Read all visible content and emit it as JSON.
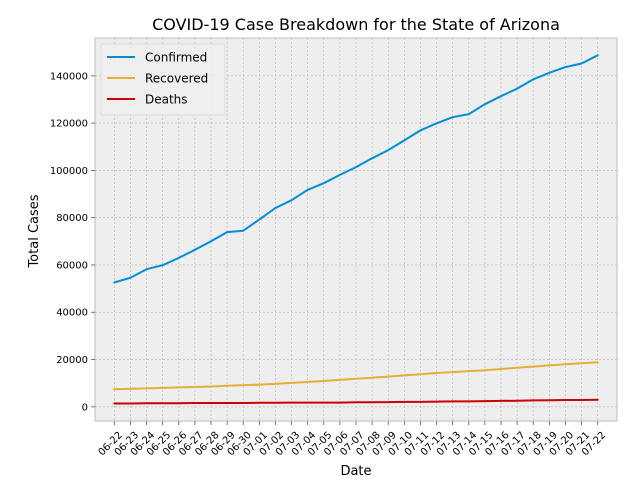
{
  "chart_data": {
    "type": "line",
    "title": "COVID-19 Case Breakdown for the State of Arizona",
    "xlabel": "Date",
    "ylabel": "Total Cases",
    "ylim": [
      -6000,
      156000
    ],
    "yticks": [
      0,
      20000,
      40000,
      60000,
      80000,
      100000,
      120000,
      140000
    ],
    "grid": true,
    "legend_position": "top-left",
    "categories": [
      "06-22",
      "06-23",
      "06-24",
      "06-25",
      "06-26",
      "06-27",
      "06-28",
      "06-29",
      "06-30",
      "07-01",
      "07-02",
      "07-03",
      "07-04",
      "07-05",
      "07-06",
      "07-07",
      "07-08",
      "07-09",
      "07-10",
      "07-11",
      "07-12",
      "07-13",
      "07-14",
      "07-15",
      "07-16",
      "07-17",
      "07-18",
      "07-19",
      "07-20",
      "07-21",
      "07-22"
    ],
    "series": [
      {
        "name": "Confirmed",
        "color": "#008fd5",
        "values": [
          52600,
          54600,
          58200,
          59900,
          63000,
          66400,
          70000,
          73900,
          74500,
          79200,
          84100,
          87400,
          91800,
          94600,
          98100,
          101400,
          105100,
          108600,
          112700,
          116900,
          119900,
          122500,
          123800,
          128000,
          131400,
          134600,
          138500,
          141300,
          143700,
          145200,
          148700
        ]
      },
      {
        "name": "Recovered",
        "color": "#e5ae38",
        "values": [
          7400,
          7600,
          7800,
          8000,
          8200,
          8400,
          8600,
          8900,
          9100,
          9400,
          9700,
          10100,
          10500,
          10900,
          11400,
          11900,
          12300,
          12800,
          13300,
          13800,
          14300,
          14700,
          15100,
          15500,
          16000,
          16500,
          17000,
          17500,
          18000,
          18400,
          18800
        ]
      },
      {
        "name": "Deaths",
        "color": "#cc0000",
        "values": [
          1400,
          1400,
          1500,
          1500,
          1500,
          1600,
          1600,
          1600,
          1600,
          1700,
          1700,
          1800,
          1800,
          1800,
          1800,
          1900,
          1900,
          2000,
          2100,
          2100,
          2200,
          2300,
          2300,
          2400,
          2500,
          2600,
          2700,
          2800,
          2900,
          2900,
          3000
        ]
      }
    ]
  }
}
